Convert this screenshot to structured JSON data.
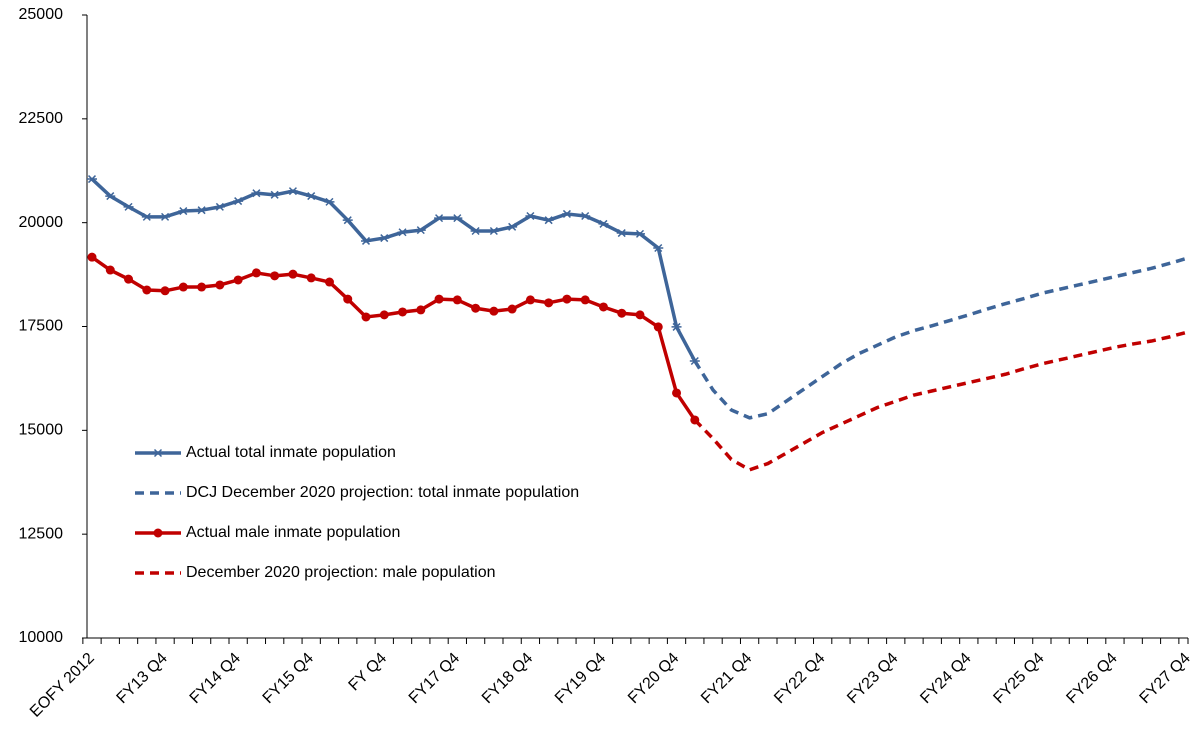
{
  "chart_data": {
    "type": "line",
    "categories": [
      "EOFY 2012",
      null,
      null,
      null,
      "FY13 Q4",
      null,
      null,
      null,
      "FY14 Q4",
      null,
      null,
      null,
      "FY15 Q4",
      null,
      null,
      null,
      "FY Q4",
      null,
      null,
      null,
      "FY17 Q4",
      null,
      null,
      null,
      "FY18 Q4",
      null,
      null,
      null,
      "FY19 Q4",
      null,
      null,
      null,
      "FY20 Q4",
      null,
      null,
      null,
      "FY21 Q4",
      null,
      null,
      null,
      "FY22 Q4",
      null,
      null,
      null,
      "FY23 Q4",
      null,
      null,
      null,
      "FY24 Q4",
      null,
      null,
      null,
      "FY25 Q4",
      null,
      null,
      null,
      "FY26 Q4",
      null,
      null,
      null,
      "FY27 Q4"
    ],
    "ylim": [
      10000,
      25000
    ],
    "yticks": [
      10000,
      12500,
      15000,
      17500,
      20000,
      22500,
      25000
    ],
    "grid": false,
    "legend": "left",
    "series": [
      {
        "name": "Actual total inmate population",
        "color": "#3e6599",
        "dashed": false,
        "marker": "star",
        "values": [
          21050,
          20640,
          20380,
          20140,
          20140,
          20280,
          20300,
          20380,
          20520,
          20710,
          20670,
          20760,
          20640,
          20500,
          20060,
          19560,
          19630,
          19770,
          19820,
          20110,
          20110,
          19800,
          19800,
          19900,
          20160,
          20060,
          20210,
          20160,
          19970,
          19750,
          19730,
          19390,
          17490,
          16670,
          null,
          null,
          null,
          null,
          null,
          null,
          null,
          null,
          null,
          null,
          null,
          null,
          null,
          null,
          null,
          null,
          null,
          null,
          null,
          null,
          null,
          null,
          null,
          null,
          null,
          null,
          null
        ]
      },
      {
        "name": "DCJ December 2020 projection: total inmate population",
        "color": "#3e6599",
        "dashed": true,
        "marker": "none",
        "values": [
          null,
          null,
          null,
          null,
          null,
          null,
          null,
          null,
          null,
          null,
          null,
          null,
          null,
          null,
          null,
          null,
          null,
          null,
          null,
          null,
          null,
          null,
          null,
          null,
          null,
          null,
          null,
          null,
          null,
          null,
          null,
          null,
          null,
          16670,
          15970,
          15490,
          15300,
          15400,
          15700,
          16000,
          16300,
          16600,
          16850,
          17050,
          17250,
          17400,
          17520,
          17650,
          17780,
          17920,
          18050,
          18170,
          18300,
          18400,
          18500,
          18600,
          18700,
          18800,
          18900,
          19020,
          19150
        ]
      },
      {
        "name": "Actual male inmate population",
        "color": "#c00000",
        "dashed": false,
        "marker": "circle",
        "values": [
          19170,
          18860,
          18640,
          18380,
          18360,
          18450,
          18450,
          18500,
          18620,
          18790,
          18720,
          18760,
          18670,
          18570,
          18160,
          17730,
          17780,
          17850,
          17900,
          18160,
          18140,
          17940,
          17870,
          17920,
          18140,
          18070,
          18160,
          18140,
          17970,
          17820,
          17780,
          17490,
          15900,
          15250,
          null,
          null,
          null,
          null,
          null,
          null,
          null,
          null,
          null,
          null,
          null,
          null,
          null,
          null,
          null,
          null,
          null,
          null,
          null,
          null,
          null,
          null,
          null,
          null,
          null,
          null,
          null
        ]
      },
      {
        "name": "December 2020 projection: male population",
        "color": "#c00000",
        "dashed": true,
        "marker": "none",
        "values": [
          null,
          null,
          null,
          null,
          null,
          null,
          null,
          null,
          null,
          null,
          null,
          null,
          null,
          null,
          null,
          null,
          null,
          null,
          null,
          null,
          null,
          null,
          null,
          null,
          null,
          null,
          null,
          null,
          null,
          null,
          null,
          null,
          null,
          15250,
          14800,
          14300,
          14050,
          14200,
          14450,
          14700,
          14950,
          15150,
          15350,
          15550,
          15700,
          15850,
          15950,
          16050,
          16150,
          16250,
          16350,
          16480,
          16600,
          16700,
          16800,
          16900,
          17000,
          17080,
          17150,
          17250,
          17370
        ]
      }
    ]
  }
}
